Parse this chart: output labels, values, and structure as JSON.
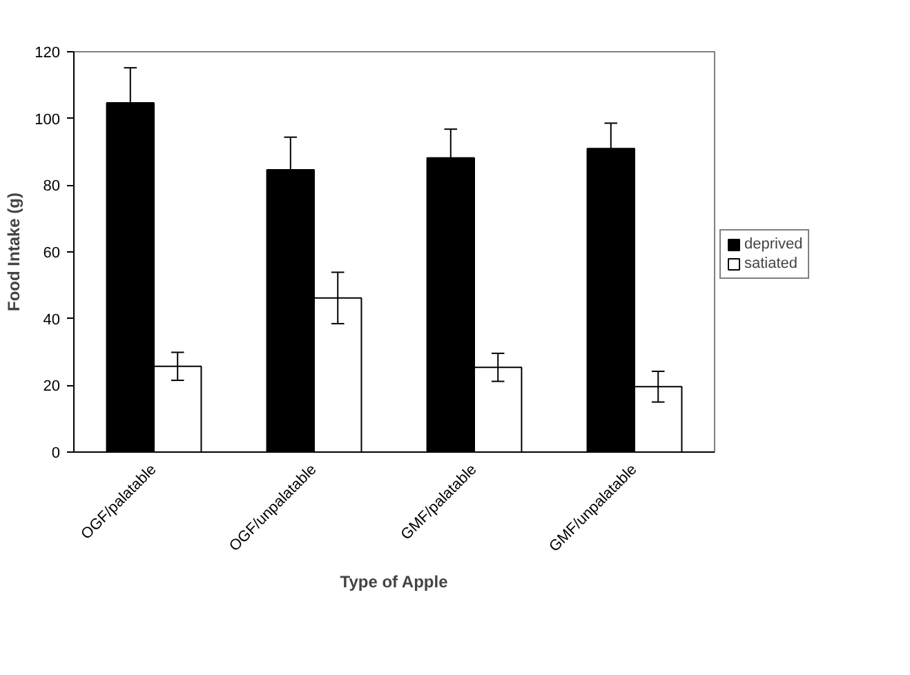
{
  "chart_data": {
    "type": "bar",
    "xlabel": "Type of Apple",
    "ylabel": "Food Intake (g)",
    "categories": [
      "OGF/palatable",
      "OGF/unpalatable",
      "GMF/palatable",
      "GMF/unpalatable"
    ],
    "series": [
      {
        "name": "deprived",
        "color": "#000000",
        "values": [
          104.7,
          84.6,
          88.2,
          91.0
        ],
        "errors": [
          10.5,
          9.8,
          8.6,
          7.6
        ]
      },
      {
        "name": "satiated",
        "color": "#ffffff",
        "values": [
          25.7,
          46.2,
          25.4,
          19.6
        ],
        "errors": [
          4.2,
          7.7,
          4.2,
          4.6
        ]
      }
    ],
    "ylim": [
      0,
      120
    ],
    "yticks": [
      0,
      20,
      40,
      60,
      80,
      100,
      120
    ],
    "grid": false,
    "legend": "right"
  }
}
